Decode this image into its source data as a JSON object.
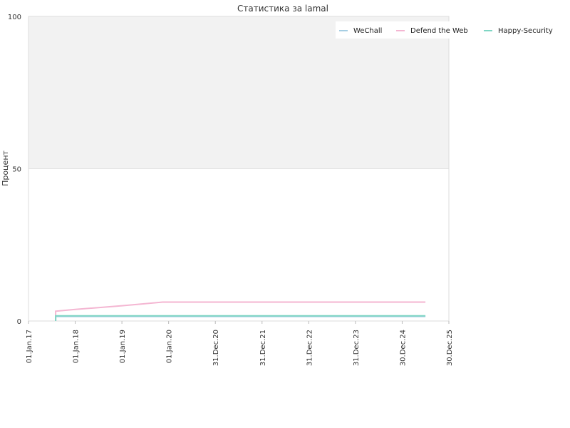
{
  "chart_data": {
    "type": "line",
    "title": "Статистика за lamal",
    "xlabel": "",
    "ylabel": "Процент",
    "ylim": [
      0,
      100
    ],
    "xlim": [
      "2017-01-01",
      "2025-12-30"
    ],
    "y_ticks": [
      0,
      50,
      100
    ],
    "x_ticks": [
      {
        "date": "2017-01-01",
        "label": "01.Jan.17"
      },
      {
        "date": "2018-01-01",
        "label": "01.Jan.18"
      },
      {
        "date": "2019-01-01",
        "label": "01.Jan.19"
      },
      {
        "date": "2020-01-01",
        "label": "01.Jan.20"
      },
      {
        "date": "2020-12-31",
        "label": "31.Dec.20"
      },
      {
        "date": "2021-12-31",
        "label": "31.Dec.21"
      },
      {
        "date": "2022-12-31",
        "label": "31.Dec.22"
      },
      {
        "date": "2023-12-31",
        "label": "31.Dec.23"
      },
      {
        "date": "2024-12-30",
        "label": "30.Dec.24"
      },
      {
        "date": "2025-12-30",
        "label": "30.Dec.25"
      }
    ],
    "legend_position": "top-right",
    "background_bands": [
      {
        "from": 50,
        "to": 100,
        "color": "#f2f2f2"
      }
    ],
    "series": [
      {
        "name": "WeChall",
        "color": "#a6cee3",
        "points": [
          [
            "2017-08-01",
            0
          ],
          [
            "2017-08-01",
            1.5
          ],
          [
            "2025-06-30",
            1.5
          ]
        ]
      },
      {
        "name": "Defend the Web",
        "color": "#f4b6d2",
        "points": [
          [
            "2017-08-01",
            0
          ],
          [
            "2017-08-01",
            3.2
          ],
          [
            "2018-01-01",
            3.8
          ],
          [
            "2018-07-01",
            4.4
          ],
          [
            "2019-01-01",
            5.0
          ],
          [
            "2019-07-01",
            5.7
          ],
          [
            "2019-11-15",
            6.2
          ],
          [
            "2025-06-30",
            6.2
          ]
        ]
      },
      {
        "name": "Happy-Security",
        "color": "#7fd6c4",
        "points": [
          [
            "2017-08-01",
            0
          ],
          [
            "2017-08-01",
            1.7
          ],
          [
            "2025-06-30",
            1.7
          ]
        ]
      }
    ]
  }
}
